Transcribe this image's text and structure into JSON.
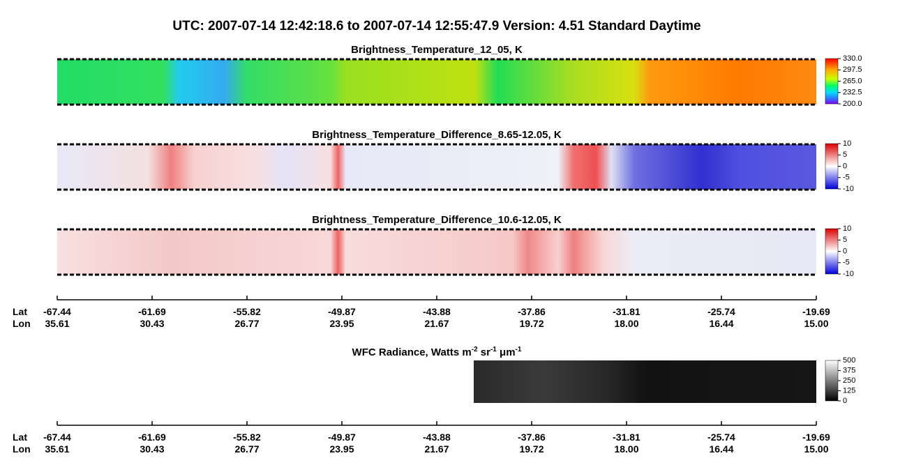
{
  "title": "UTC:  2007-07-14   12:42:18.6  to  2007-07-14   12:55:47.9    Version: 4.51  Standard Daytime",
  "panels": [
    {
      "title": "Brightness_Temperature_12_05, K",
      "colorbar_ticks": [
        "330.0",
        "297.5",
        "265.0",
        "232.5",
        "200.0"
      ]
    },
    {
      "title": "Brightness_Temperature_Difference_8.65-12.05, K",
      "colorbar_ticks": [
        "10",
        "5",
        "0",
        "-5",
        "-10"
      ]
    },
    {
      "title": "Brightness_Temperature_Difference_10.6-12.05, K",
      "colorbar_ticks": [
        "10",
        "5",
        "0",
        "-5",
        "-10"
      ]
    }
  ],
  "axes": [
    {
      "lat_label": "Lat",
      "lon_label": "Lon",
      "lat": [
        "-67.44",
        "-61.69",
        "-55.82",
        "-49.87",
        "-43.88",
        "-37.86",
        "-31.81",
        "-25.74",
        "-19.69"
      ],
      "lon": [
        "35.61",
        "30.43",
        "26.77",
        "23.95",
        "21.67",
        "19.72",
        "18.00",
        "16.44",
        "15.00"
      ]
    },
    {
      "lat_label": "Lat",
      "lon_label": "Lon",
      "lat": [
        "-67.44",
        "-61.69",
        "-55.82",
        "-49.87",
        "-43.88",
        "-37.86",
        "-31.81",
        "-25.74",
        "-19.69"
      ],
      "lon": [
        "35.61",
        "30.43",
        "26.77",
        "23.95",
        "21.67",
        "19.72",
        "18.00",
        "16.44",
        "15.00"
      ]
    }
  ],
  "wfc": {
    "title_parts": [
      "WFC Radiance, Watts m",
      "-2",
      " sr",
      "-1",
      " μm",
      "-1"
    ],
    "colorbar_ticks": [
      "500",
      "375",
      "250",
      "125",
      "0"
    ]
  }
}
